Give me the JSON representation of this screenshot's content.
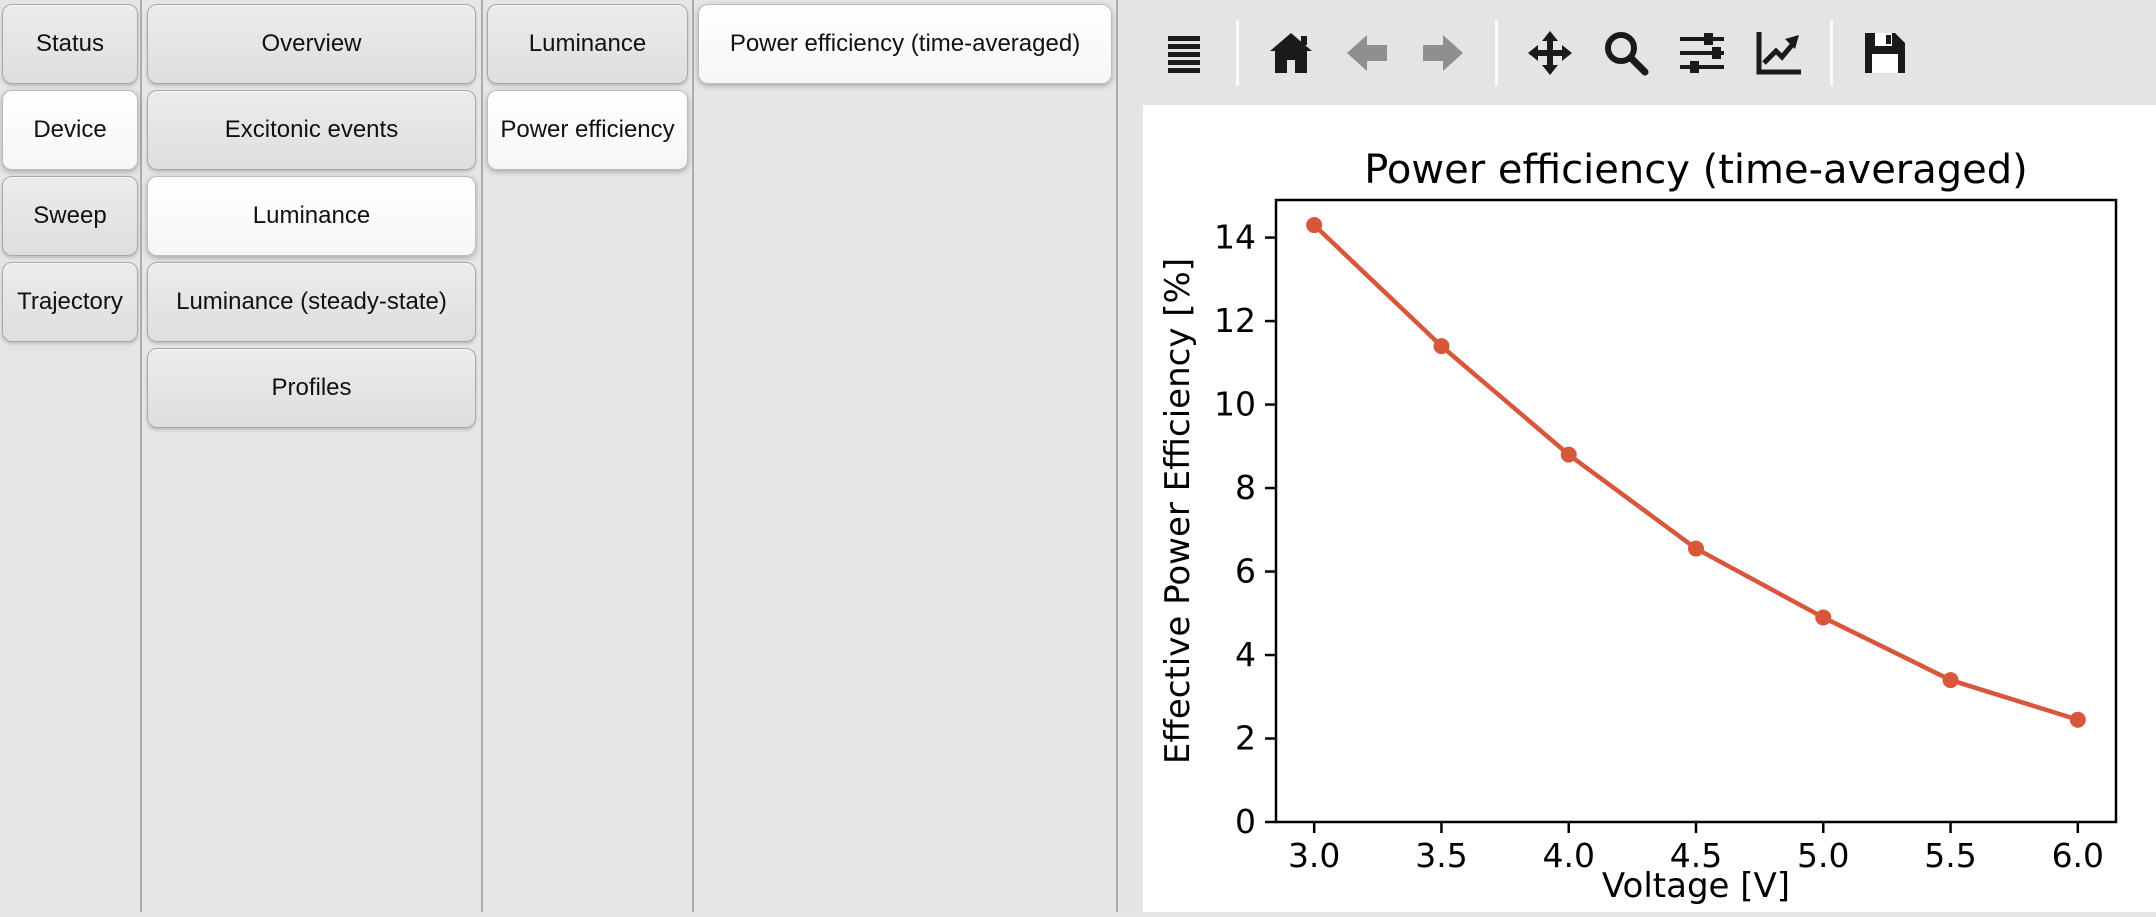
{
  "nav": {
    "level1": {
      "tabs": [
        {
          "label": "Status",
          "selected": false
        },
        {
          "label": "Device",
          "selected": true
        },
        {
          "label": "Sweep",
          "selected": false
        },
        {
          "label": "Trajectory",
          "selected": false
        }
      ]
    },
    "level2": {
      "tabs": [
        {
          "label": "Overview",
          "selected": false
        },
        {
          "label": "Excitonic events",
          "selected": false
        },
        {
          "label": "Luminance",
          "selected": true
        },
        {
          "label": "Luminance (steady-state)",
          "selected": false
        },
        {
          "label": "Profiles",
          "selected": false
        }
      ]
    },
    "level3": {
      "tabs": [
        {
          "label": "Luminance",
          "selected": false
        },
        {
          "label": "Power efficiency",
          "selected": true
        }
      ]
    },
    "level4": {
      "tabs": [
        {
          "label": "Power efficiency (time-averaged)",
          "selected": true
        }
      ]
    }
  },
  "toolbar": {
    "items": [
      {
        "name": "menu",
        "disabled": false
      },
      {
        "name": "home",
        "disabled": false
      },
      {
        "name": "back",
        "disabled": true
      },
      {
        "name": "forward",
        "disabled": true
      },
      {
        "name": "pan",
        "disabled": false
      },
      {
        "name": "zoom",
        "disabled": false
      },
      {
        "name": "subplots",
        "disabled": false
      },
      {
        "name": "customize",
        "disabled": false
      },
      {
        "name": "save",
        "disabled": false
      }
    ]
  },
  "chart_data": {
    "type": "line",
    "title": "Power efficiency (time-averaged)",
    "xlabel": "Voltage [V]",
    "ylabel": "Effective Power Efficiency [%]",
    "x": [
      3.0,
      3.5,
      4.0,
      4.5,
      5.0,
      5.5,
      6.0
    ],
    "y": [
      14.3,
      11.4,
      8.8,
      6.55,
      4.9,
      3.4,
      2.45
    ],
    "xlim": [
      2.85,
      6.15
    ],
    "ylim": [
      0,
      14.9
    ],
    "xticks": [
      "3.0",
      "3.5",
      "4.0",
      "4.5",
      "5.0",
      "5.5",
      "6.0"
    ],
    "yticks": [
      0,
      2,
      4,
      6,
      8,
      10,
      12,
      14
    ],
    "line_color": "#d8563a",
    "marker": "o",
    "grid": false,
    "legend": null
  },
  "colors": {
    "background": "#e5e5e5",
    "pane_border": "#acacac",
    "figure_background": "#ffffff",
    "line": "#d8563a",
    "disabled_icon": "#8f8f8f"
  }
}
